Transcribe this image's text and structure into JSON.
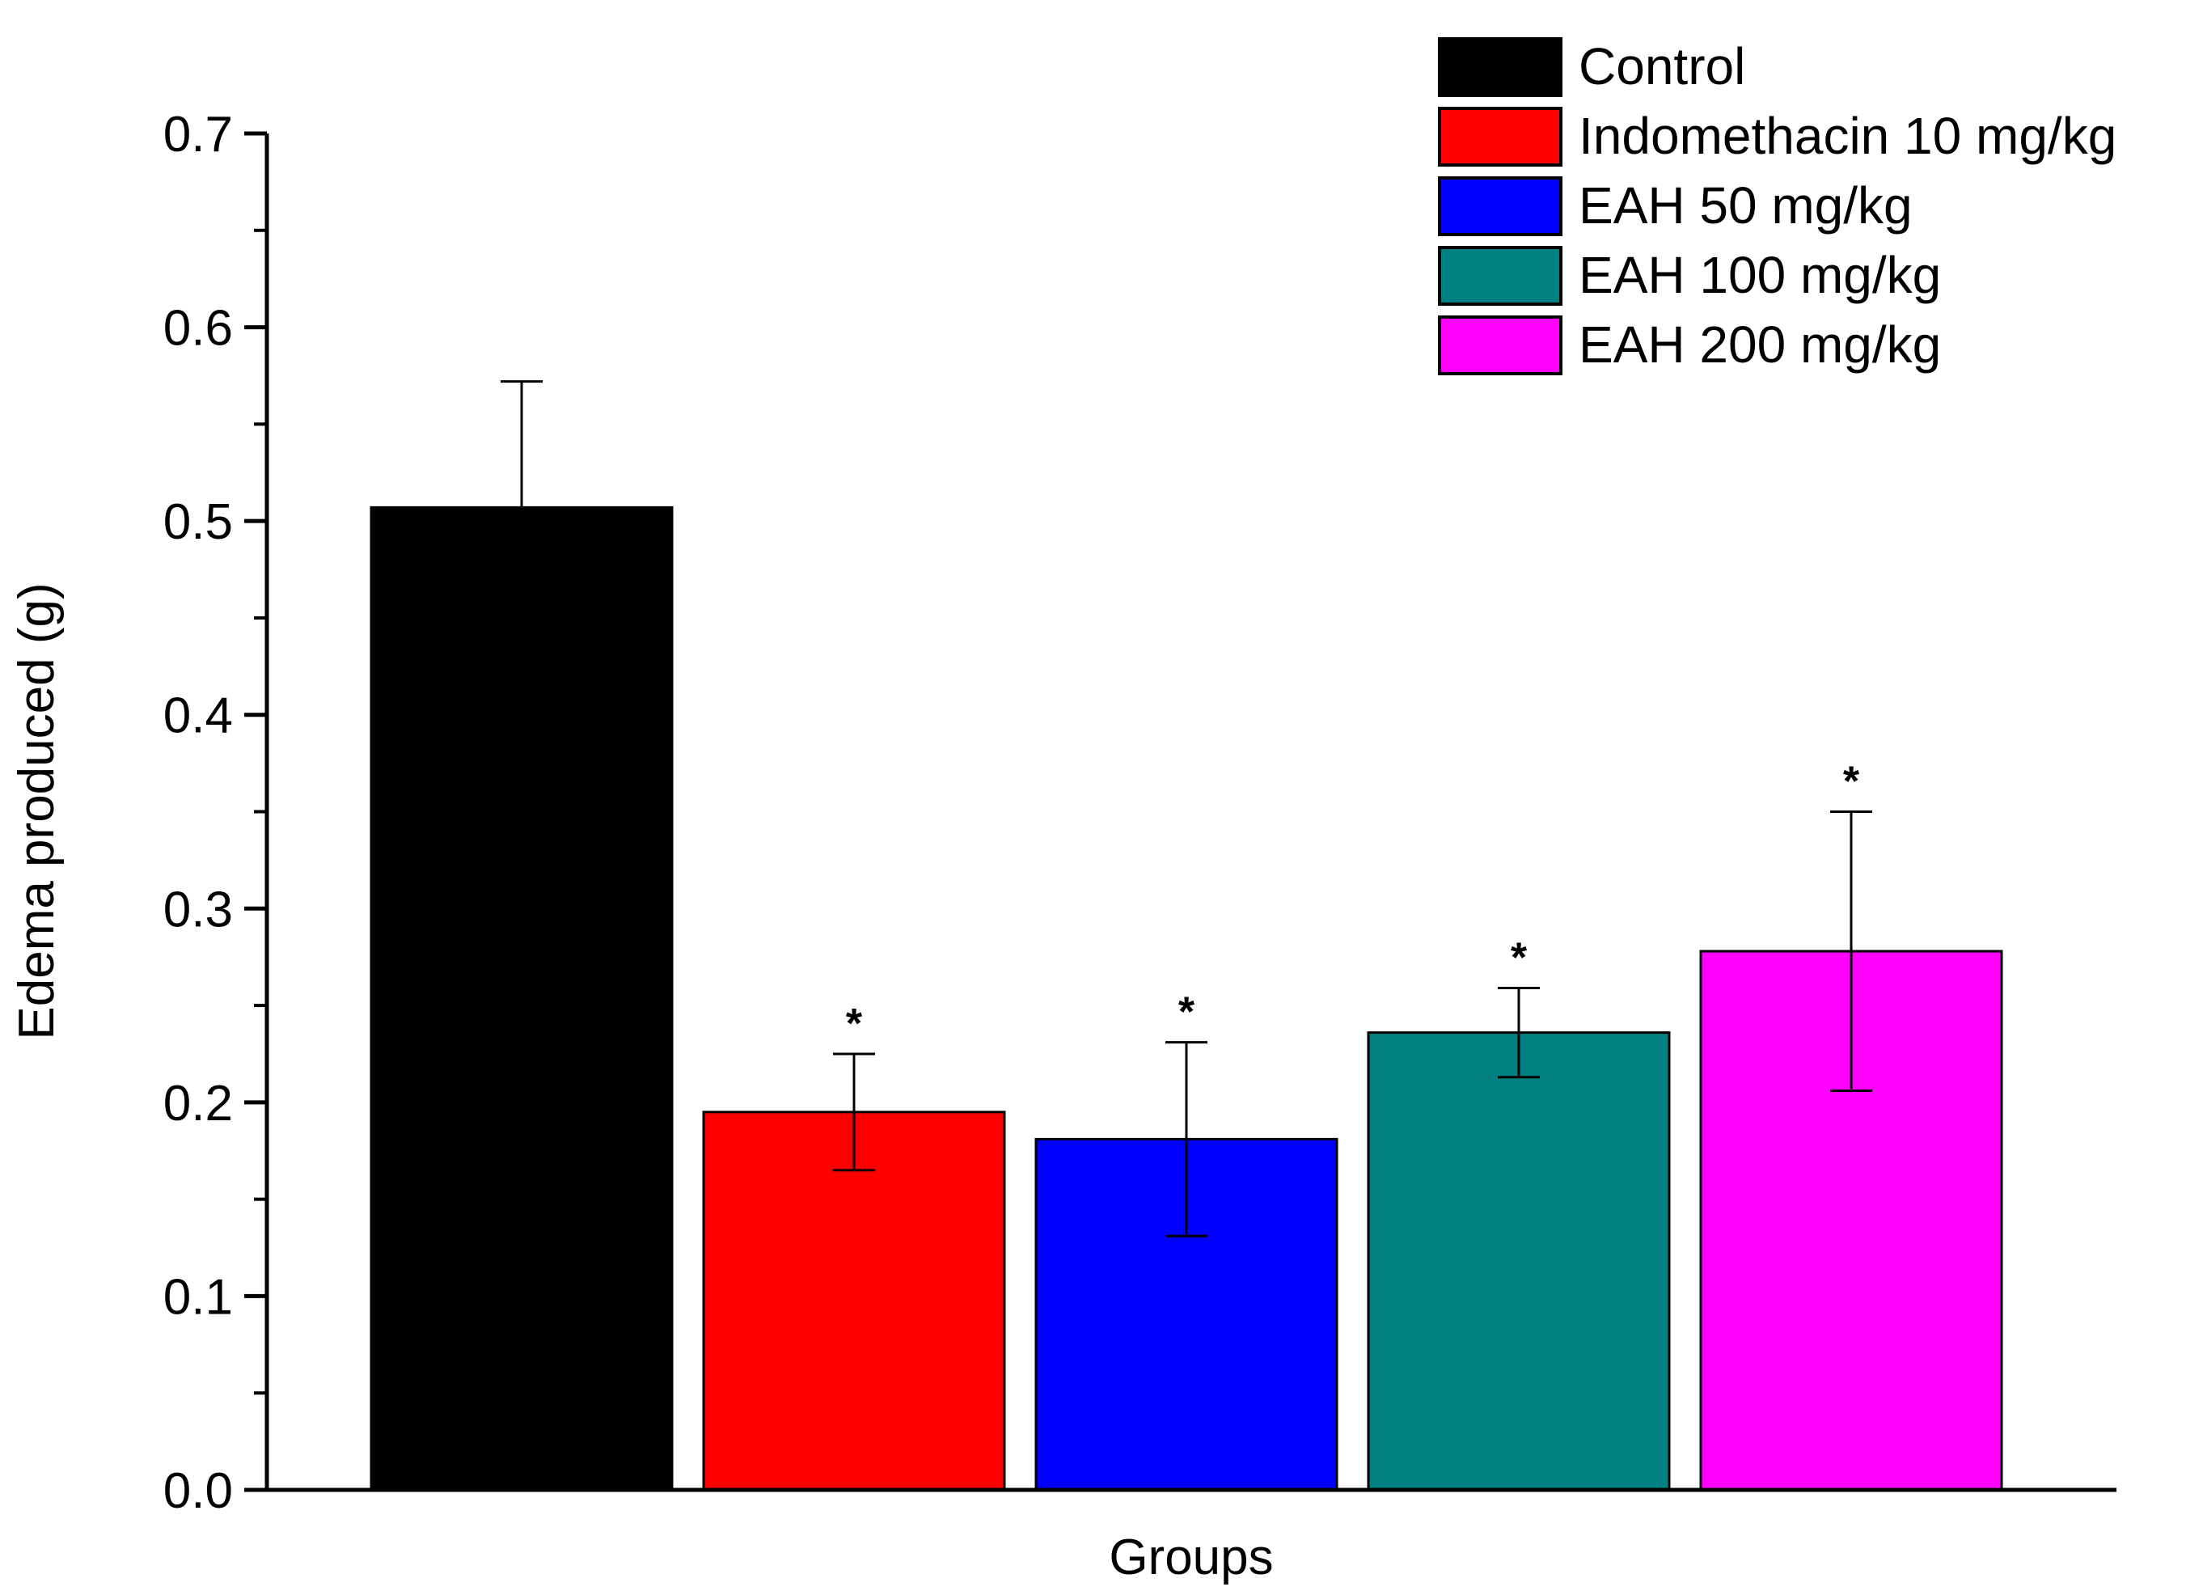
{
  "chart_data": {
    "type": "bar",
    "title": "",
    "xlabel": "Groups",
    "ylabel": "Edema produced (g)",
    "ylim": [
      0,
      0.7
    ],
    "yticks": [
      "0.0",
      "0.1",
      "0.2",
      "0.3",
      "0.4",
      "0.5",
      "0.6",
      "0.7"
    ],
    "grid": false,
    "legend_position": "top-right",
    "series": [
      {
        "name": "Control",
        "color": "#000000",
        "value": 0.507,
        "error": 0.065,
        "significance": ""
      },
      {
        "name": "Indomethacin 10 mg/kg",
        "color": "#ff0000",
        "value": 0.195,
        "error": 0.03,
        "significance": "*"
      },
      {
        "name": "EAH 50 mg/kg",
        "color": "#0000ff",
        "value": 0.181,
        "error": 0.05,
        "significance": "*"
      },
      {
        "name": "EAH 100 mg/kg",
        "color": "#008080",
        "value": 0.236,
        "error": 0.023,
        "significance": "*"
      },
      {
        "name": "EAH 200 mg/kg",
        "color": "#ff00ff",
        "value": 0.278,
        "error": 0.072,
        "significance": "*"
      }
    ]
  }
}
